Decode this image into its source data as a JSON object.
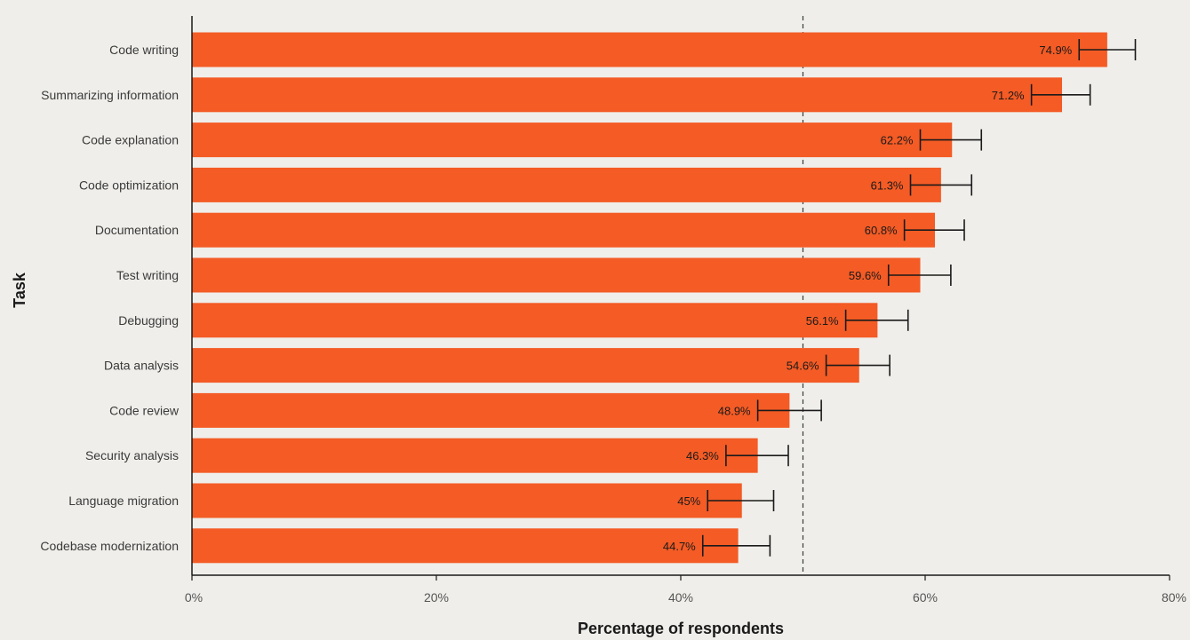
{
  "chart_data": {
    "type": "bar",
    "orientation": "horizontal",
    "xlabel": "Percentage of respondents",
    "ylabel": "Task",
    "xlim": [
      0,
      80
    ],
    "x_ticks": [
      0,
      20,
      40,
      60,
      80
    ],
    "x_tick_labels": [
      "0%",
      "20%",
      "40%",
      "60%",
      "80%"
    ],
    "reference_line": 50,
    "bar_color": "#f45b25",
    "categories": [
      "Code writing",
      "Summarizing information",
      "Code explanation",
      "Code optimization",
      "Documentation",
      "Test writing",
      "Debugging",
      "Data analysis",
      "Code review",
      "Security analysis",
      "Language migration",
      "Codebase modernization"
    ],
    "values": [
      74.9,
      71.2,
      62.2,
      61.3,
      60.8,
      59.6,
      56.1,
      54.6,
      48.9,
      46.3,
      45,
      44.7
    ],
    "value_labels": [
      "74.9%",
      "71.2%",
      "62.2%",
      "61.3%",
      "60.8%",
      "59.6%",
      "56.1%",
      "54.6%",
      "48.9%",
      "46.3%",
      "45%",
      "44.7%"
    ],
    "error_low": [
      72.6,
      68.7,
      59.6,
      58.8,
      58.3,
      57.0,
      53.5,
      51.9,
      46.3,
      43.7,
      42.2,
      41.8
    ],
    "error_high": [
      77.2,
      73.5,
      64.6,
      63.8,
      63.2,
      62.1,
      58.6,
      57.1,
      51.5,
      48.8,
      47.6,
      47.3
    ]
  }
}
